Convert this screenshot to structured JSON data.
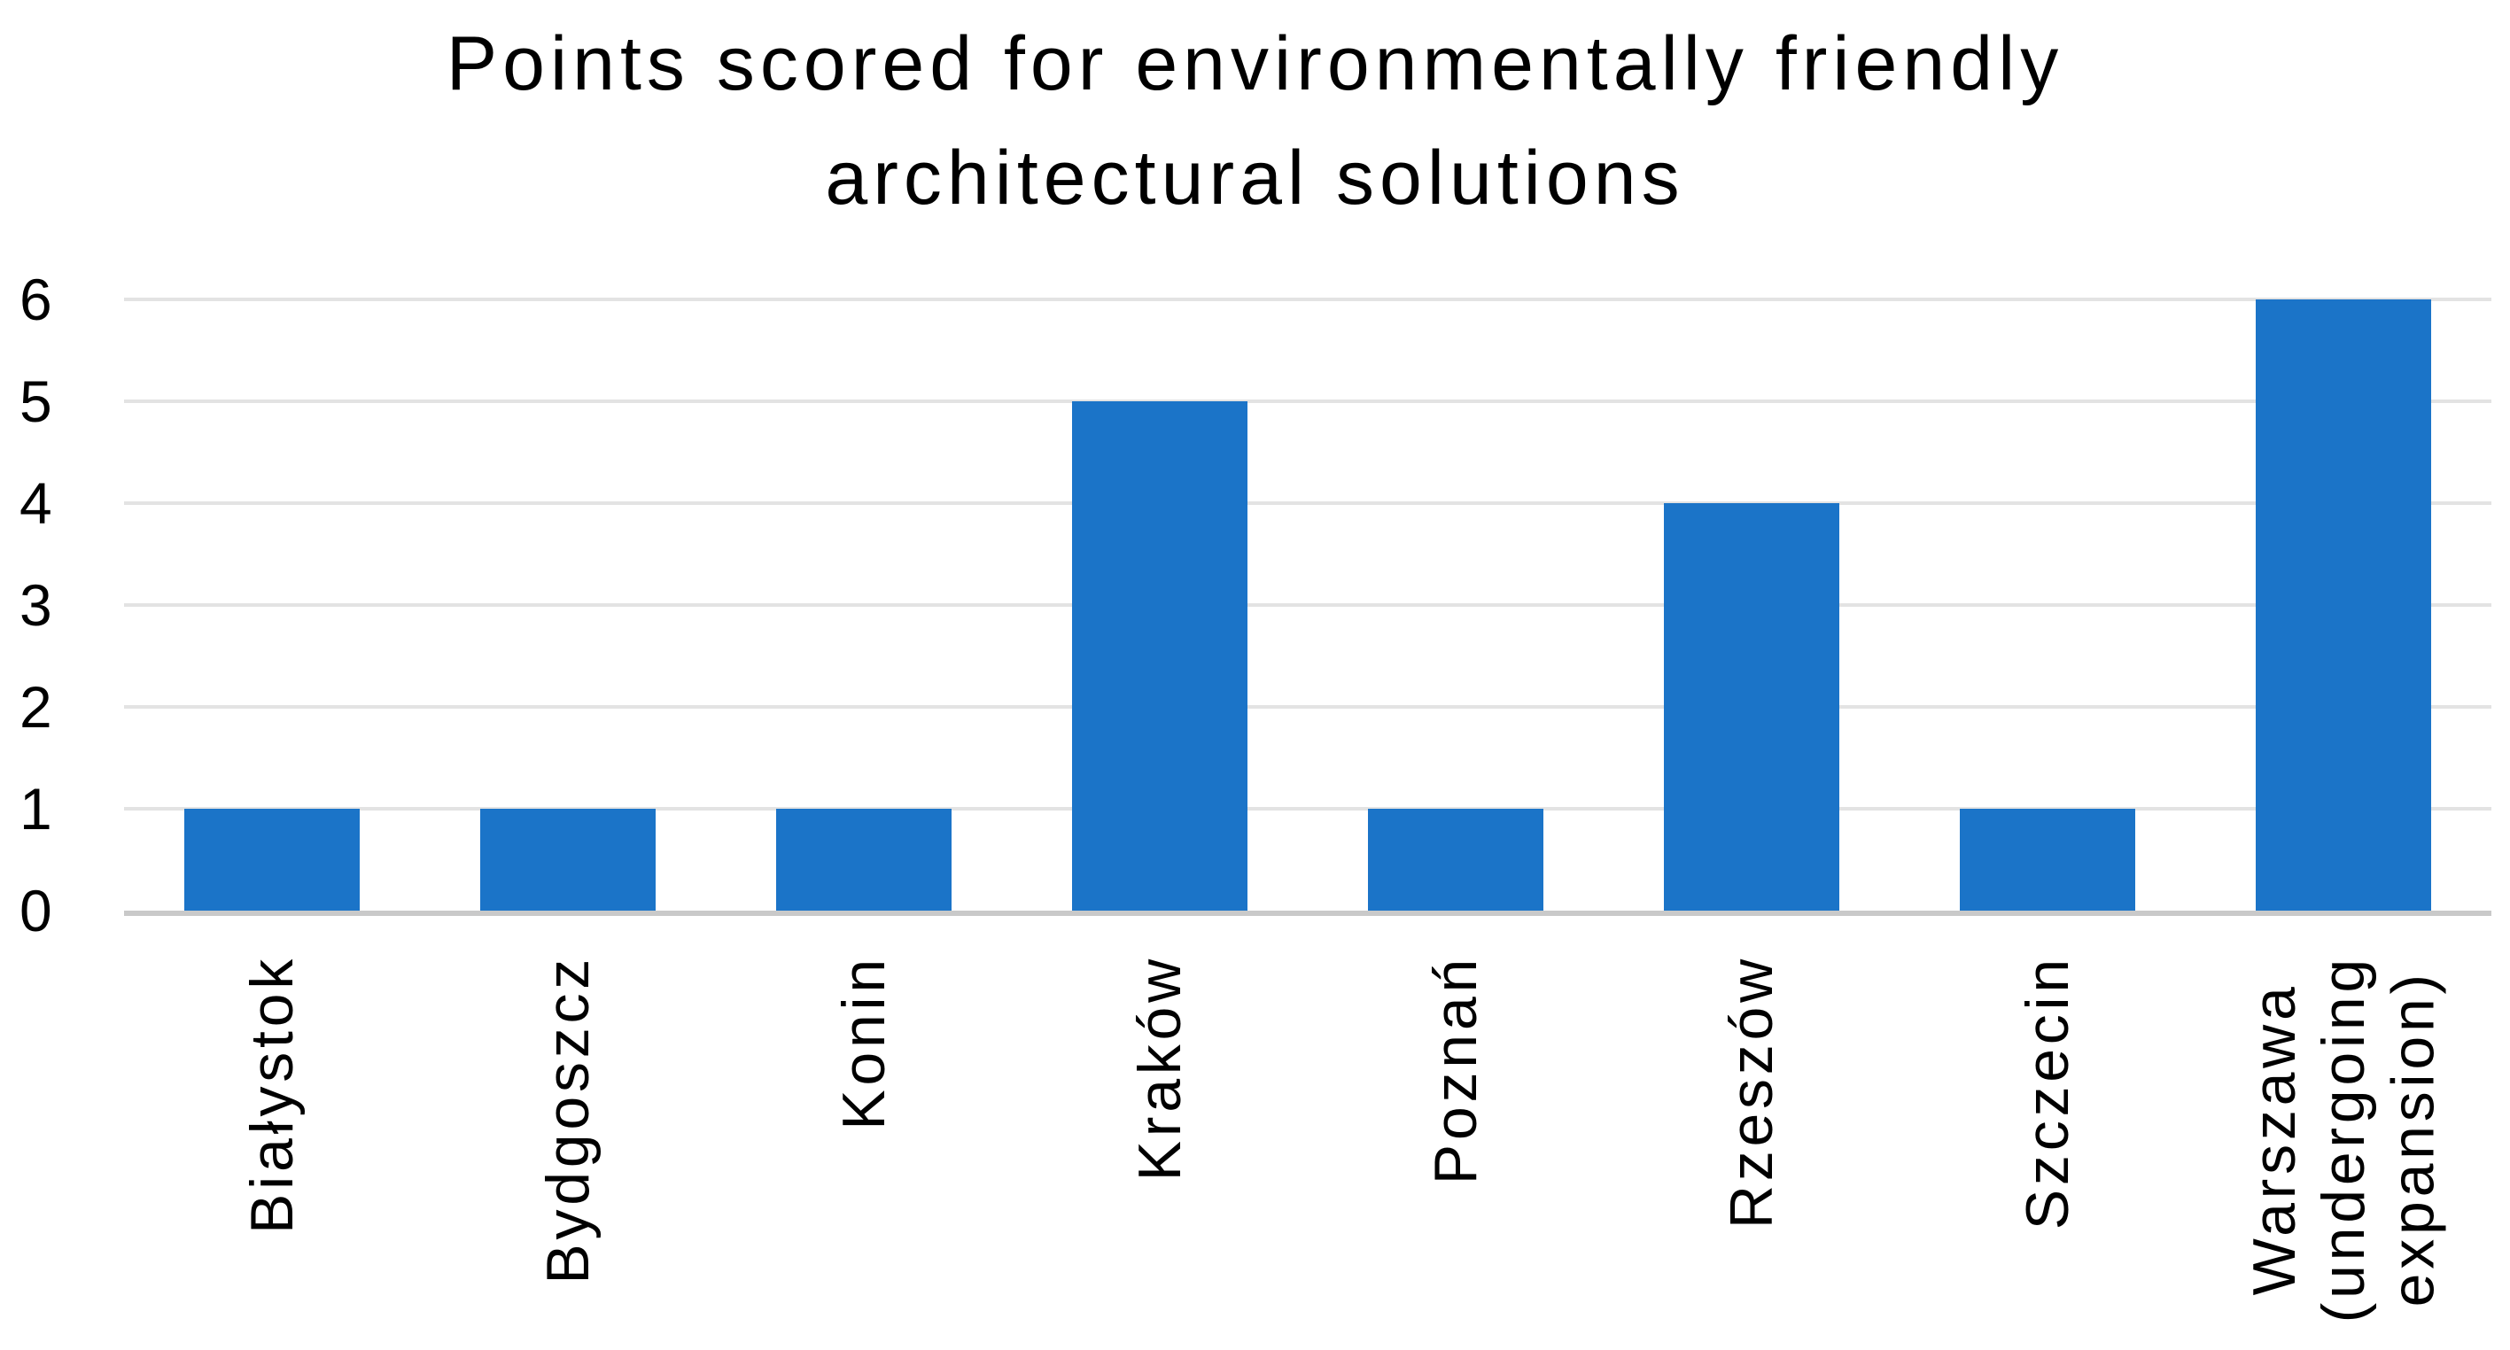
{
  "chart_data": {
    "type": "bar",
    "title": "Points scored for environmentally friendly architectural solutions",
    "title_display": "Points scored for environmentally friendly\narchitectural solutions",
    "categories": [
      "Białystok",
      "Bydgoszcz",
      "Konin",
      "Kraków",
      "Poznań",
      "Rzeszów",
      "Szczecin",
      "Warszawa\n(undergoing\nexpansion)"
    ],
    "values": [
      1,
      1,
      1,
      5,
      1,
      4,
      1,
      6
    ],
    "xlabel": "",
    "ylabel": "",
    "ylim": [
      0,
      6
    ],
    "yticks": [
      0,
      1,
      2,
      3,
      4,
      5,
      6
    ],
    "grid": "horizontal",
    "legend": "none",
    "x_label_rotation_degrees": 90,
    "colors": {
      "bar": "#1B74C8",
      "gridline": "#E3E3E3",
      "baseline": "#C9C9C9",
      "text": "#000000",
      "background": "#FFFFFF"
    }
  }
}
